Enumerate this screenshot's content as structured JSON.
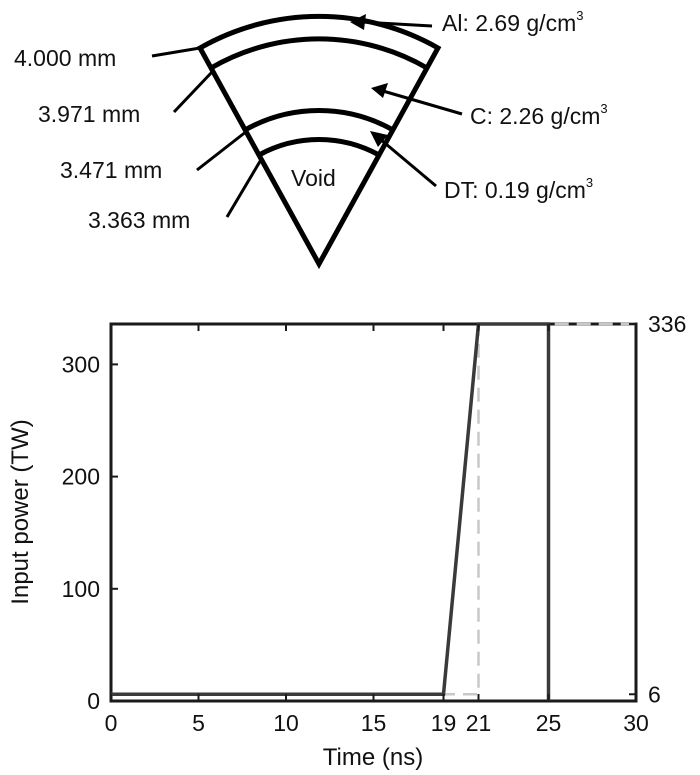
{
  "capsule": {
    "layers": [
      {
        "radius_label": "4.000 mm",
        "material": "Al: 2.69 g/cm",
        "superscript": "3"
      },
      {
        "radius_label": "3.971 mm",
        "material": "C: 2.26 g/cm",
        "superscript": "3"
      },
      {
        "radius_label": "3.471 mm",
        "material": "DT: 0.19 g/cm",
        "superscript": "3"
      },
      {
        "radius_label": "3.363 mm"
      }
    ],
    "void_label": "Void"
  },
  "chart_data": {
    "type": "line",
    "xlabel": "Time (ns)",
    "ylabel": "Input power (TW)",
    "xlim": [
      0,
      30
    ],
    "ylim": [
      0,
      336
    ],
    "x_ticks": [
      0,
      5,
      10,
      15,
      19,
      21,
      25,
      30
    ],
    "y_ticks": [
      0,
      100,
      200,
      300
    ],
    "y_right_ticks": [
      6,
      336
    ],
    "grid": false,
    "series": [
      {
        "style": "solid",
        "color": "#3a3a3a",
        "x": [
          0,
          19,
          21,
          25,
          25
        ],
        "y": [
          6,
          6,
          336,
          336,
          0
        ]
      },
      {
        "style": "dashed",
        "color": "#c8c8c8",
        "x": [
          0,
          19,
          21,
          21,
          30
        ],
        "y": [
          6,
          6,
          6,
          336,
          336
        ]
      }
    ]
  }
}
